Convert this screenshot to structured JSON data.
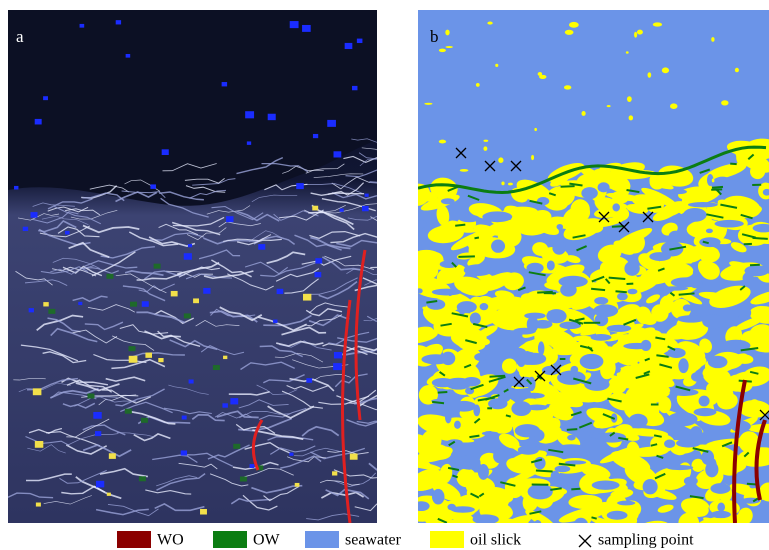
{
  "panels": [
    {
      "label": "a"
    },
    {
      "label": "b"
    }
  ],
  "legend": [
    {
      "label": "WO",
      "color": "#8b0000"
    },
    {
      "label": "OW",
      "color": "#0b7d12"
    },
    {
      "label": "seawater",
      "color": "#6b94e8"
    },
    {
      "label": "oil slick",
      "color": "#ffff00"
    },
    {
      "label": "sampling point"
    }
  ]
}
